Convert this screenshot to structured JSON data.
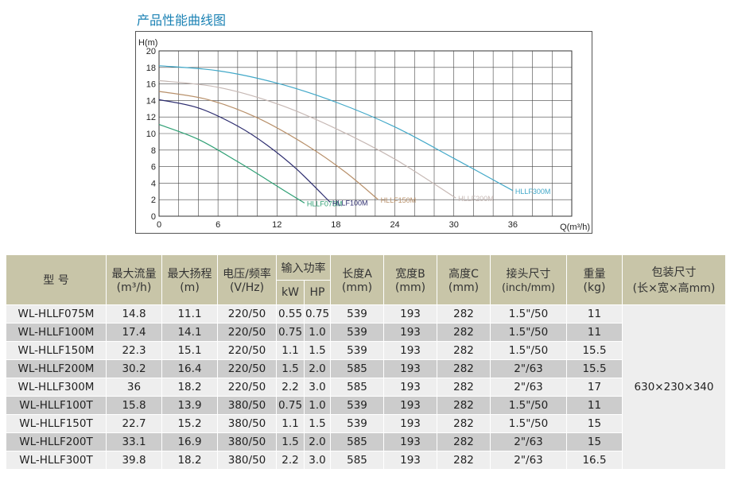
{
  "page_title": "产品性能曲线图",
  "chart_data": {
    "type": "line",
    "ylabel": "H(m)",
    "xlabel": "Q(m³/h)",
    "xlim": [
      0,
      42
    ],
    "ylim": [
      0,
      20
    ],
    "xticks": [
      0,
      6,
      12,
      18,
      24,
      30,
      36
    ],
    "yticks": [
      0,
      2,
      4,
      6,
      8,
      10,
      12,
      14,
      16,
      18,
      20
    ],
    "grid": true,
    "series": [
      {
        "name": "HLLF075M",
        "color": "#2e9f74",
        "x": [
          0,
          4,
          8,
          11,
          13,
          14.8
        ],
        "y": [
          11.1,
          9.3,
          6.6,
          4.4,
          2.9,
          1.6
        ]
      },
      {
        "name": "HLLF100M",
        "color": "#2e2e70",
        "x": [
          0,
          4,
          8,
          11,
          14,
          17.4
        ],
        "y": [
          14.1,
          13.1,
          10.9,
          8.6,
          5.7,
          1.7
        ]
      },
      {
        "name": "HLLF150M",
        "color": "#b8906a",
        "x": [
          0,
          5,
          10,
          15,
          19,
          22.3
        ],
        "y": [
          15.1,
          14.1,
          11.9,
          8.6,
          5.3,
          2.0
        ]
      },
      {
        "name": "HLLF200M",
        "color": "#c6b8b4",
        "x": [
          0,
          6,
          12,
          18,
          24,
          30.2
        ],
        "y": [
          16.4,
          15.6,
          13.6,
          10.6,
          6.9,
          2.2
        ]
      },
      {
        "name": "HLLF300M",
        "color": "#41a8c8",
        "x": [
          0,
          6,
          12,
          18,
          24,
          30,
          36
        ],
        "y": [
          18.2,
          17.6,
          16.1,
          13.8,
          10.8,
          7.0,
          3.1
        ]
      }
    ]
  },
  "table": {
    "headers": {
      "model": "型 号",
      "max_flow": "最大流量",
      "max_flow_unit": "(m³/h)",
      "max_head": "最大扬程",
      "max_head_unit": "(m)",
      "voltage": "电压/频率",
      "voltage_unit": "(V/Hz)",
      "power": "输入功率",
      "kw": "kW",
      "hp": "HP",
      "len": "长度A",
      "len_unit": "(mm)",
      "wid": "宽度B",
      "wid_unit": "(mm)",
      "hei": "高度C",
      "hei_unit": "(mm)",
      "conn": "接头尺寸",
      "conn_unit": "(inch/mm)",
      "weight": "重量",
      "weight_unit": "(kg)",
      "pack": "包装尺寸",
      "pack_unit": "(长×宽×高mm)"
    },
    "rows": [
      [
        "WL-HLLF075M",
        "14.8",
        "11.1",
        "220/50",
        "0.55",
        "0.75",
        "539",
        "193",
        "282",
        "1.5\"/50",
        "11"
      ],
      [
        "WL-HLLF100M",
        "17.4",
        "14.1",
        "220/50",
        "0.75",
        "1.0",
        "539",
        "193",
        "282",
        "1.5\"/50",
        "11"
      ],
      [
        "WL-HLLF150M",
        "22.3",
        "15.1",
        "220/50",
        "1.1",
        "1.5",
        "539",
        "193",
        "282",
        "1.5\"/50",
        "15.5"
      ],
      [
        "WL-HLLF200M",
        "30.2",
        "16.4",
        "220/50",
        "1.5",
        "2.0",
        "585",
        "193",
        "282",
        "2\"/63",
        "15.5"
      ],
      [
        "WL-HLLF300M",
        "36",
        "18.2",
        "220/50",
        "2.2",
        "3.0",
        "585",
        "193",
        "282",
        "2\"/63",
        "17"
      ],
      [
        "WL-HLLF100T",
        "15.8",
        "13.9",
        "380/50",
        "0.75",
        "1.0",
        "539",
        "193",
        "282",
        "1.5\"/50",
        "11"
      ],
      [
        "WL-HLLF150T",
        "22.7",
        "15.2",
        "380/50",
        "1.1",
        "1.5",
        "539",
        "193",
        "282",
        "1.5\"/50",
        "15"
      ],
      [
        "WL-HLLF200T",
        "33.1",
        "16.9",
        "380/50",
        "1.5",
        "2.0",
        "585",
        "193",
        "282",
        "2\"/63",
        "15"
      ],
      [
        "WL-HLLF300T",
        "39.8",
        "18.2",
        "380/50",
        "2.2",
        "3.0",
        "585",
        "193",
        "282",
        "2\"/63",
        "16.5"
      ]
    ],
    "pack_size": "630×230×340"
  }
}
